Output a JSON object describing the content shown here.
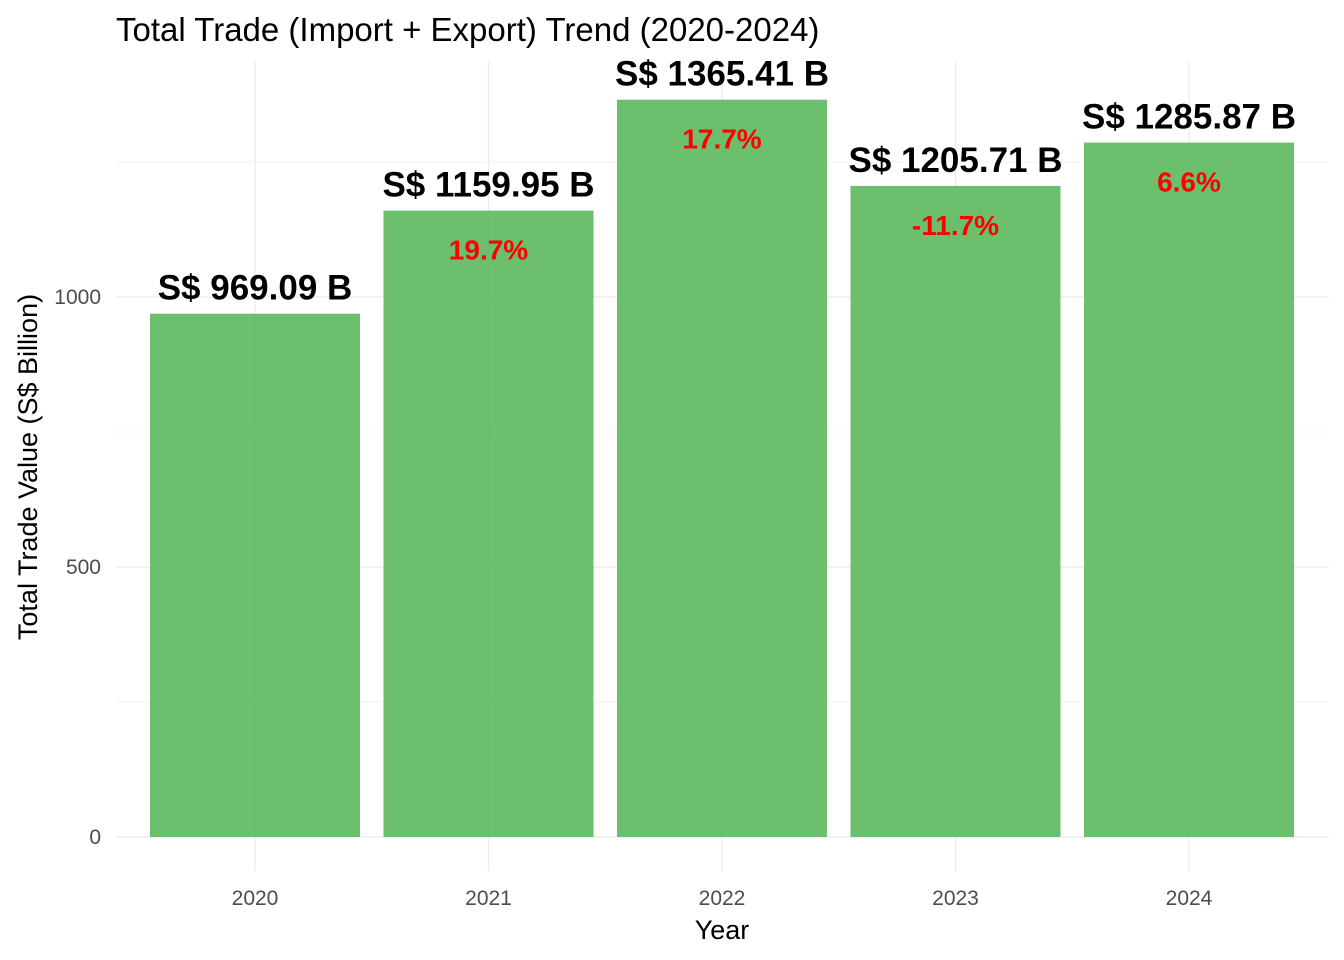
{
  "chart_data": {
    "type": "bar",
    "title": "Total Trade (Import + Export) Trend (2020-2024)",
    "xlabel": "Year",
    "ylabel": "Total Trade Value (S$ Billion)",
    "categories": [
      "2020",
      "2021",
      "2022",
      "2023",
      "2024"
    ],
    "values": [
      969.09,
      1159.95,
      1365.41,
      1205.71,
      1285.87
    ],
    "value_labels": [
      "S$ 969.09 B",
      "S$ 1159.95 B",
      "S$ 1365.41 B",
      "S$ 1205.71 B",
      "S$ 1285.87 B"
    ],
    "change_labels": [
      "",
      "19.7%",
      "17.7%",
      "-11.7%",
      "6.6%"
    ],
    "y_ticks": [
      0,
      500,
      1000
    ],
    "y_tick_labels": [
      "0",
      "500",
      "1000"
    ],
    "ylim": [
      0,
      1400
    ],
    "grid": true,
    "legend": "none",
    "bar_color": "#5cb85c",
    "change_label_color": "#ff0000"
  }
}
